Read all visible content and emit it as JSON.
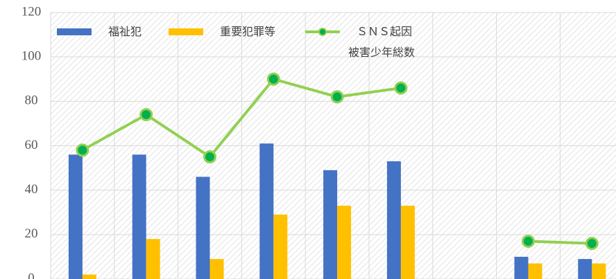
{
  "chart_data": {
    "type": "bar-line",
    "categories": [
      null,
      null,
      null,
      null,
      null,
      null,
      null,
      null,
      null
    ],
    "series": [
      {
        "name": "福祉犯",
        "type": "bar",
        "color": "#4472c4",
        "values": [
          56,
          56,
          46,
          61,
          49,
          53,
          null,
          10,
          9
        ]
      },
      {
        "name": "重要犯罪等",
        "type": "bar",
        "color": "#ffc000",
        "values": [
          2,
          18,
          9,
          29,
          33,
          33,
          null,
          7,
          7
        ]
      },
      {
        "name": "ＳＮＳ起因\n被害少年総数",
        "type": "line",
        "color": "#92d050",
        "marker_color": "#00b050",
        "values": [
          58,
          74,
          55,
          90,
          82,
          86,
          null,
          17,
          16
        ]
      }
    ],
    "ylim": [
      0,
      120
    ],
    "yticks": [
      0,
      20,
      40,
      60,
      80,
      100,
      120
    ],
    "grid": true,
    "legend": "top"
  }
}
